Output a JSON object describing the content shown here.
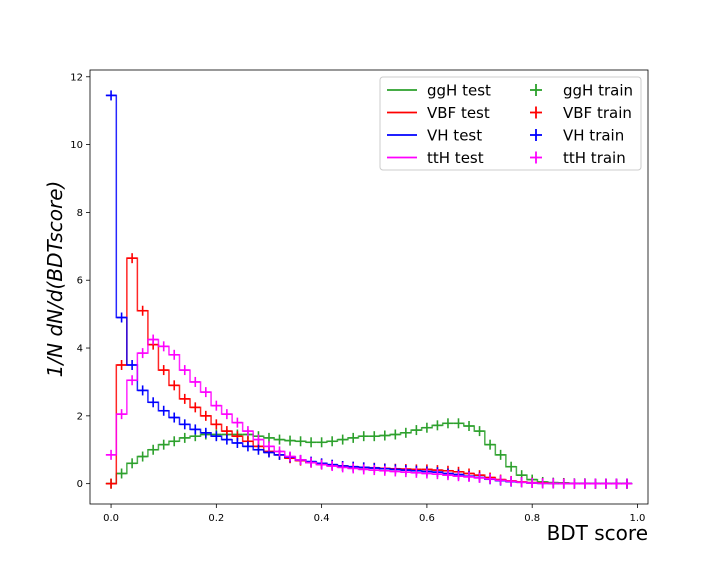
{
  "chart_data": {
    "type": "line",
    "chart_style": "step histogram (test) with cross markers (train)",
    "xlabel": "BDT score",
    "ylabel": "1/N dN/d(BDTscore)",
    "xlim": [
      -0.04,
      1.02
    ],
    "ylim": [
      -0.6,
      12.2
    ],
    "xticks": [
      "0.0",
      "0.2",
      "0.4",
      "0.6",
      "0.8",
      "1.0"
    ],
    "yticks": [
      "0",
      "2",
      "4",
      "6",
      "8",
      "10",
      "12"
    ],
    "grid": false,
    "legend_position": "top-right",
    "legend_columns": 2,
    "bin_width": 0.02,
    "bin_centers": [
      0.0,
      0.02,
      0.04,
      0.06,
      0.08,
      0.1,
      0.12,
      0.14,
      0.16,
      0.18,
      0.2,
      0.22,
      0.24,
      0.26,
      0.28,
      0.3,
      0.32,
      0.34,
      0.36,
      0.38,
      0.4,
      0.42,
      0.44,
      0.46,
      0.48,
      0.5,
      0.52,
      0.54,
      0.56,
      0.58,
      0.6,
      0.62,
      0.64,
      0.66,
      0.68,
      0.7,
      0.72,
      0.74,
      0.76,
      0.78,
      0.8,
      0.82,
      0.84,
      0.86,
      0.88,
      0.9,
      0.92,
      0.94,
      0.96,
      0.98
    ],
    "series": [
      {
        "name": "ggH",
        "color": "#2ca02c",
        "test_label": "ggH test",
        "train_label": "ggH train",
        "values": [
          0.0,
          0.3,
          0.6,
          0.8,
          1.0,
          1.15,
          1.25,
          1.35,
          1.4,
          1.45,
          1.45,
          1.45,
          1.45,
          1.45,
          1.4,
          1.35,
          1.3,
          1.27,
          1.25,
          1.22,
          1.22,
          1.25,
          1.3,
          1.35,
          1.4,
          1.4,
          1.42,
          1.45,
          1.5,
          1.58,
          1.65,
          1.72,
          1.78,
          1.78,
          1.7,
          1.55,
          1.15,
          0.85,
          0.5,
          0.25,
          0.12,
          0.05,
          0.03,
          0.02,
          0.01,
          0.01,
          0.0,
          0.0,
          0.0,
          0.0
        ]
      },
      {
        "name": "VBF",
        "color": "#ff0000",
        "test_label": "VBF test",
        "train_label": "VBF train",
        "values": [
          0.0,
          3.5,
          6.65,
          5.1,
          4.1,
          3.35,
          2.9,
          2.5,
          2.25,
          2.0,
          1.75,
          1.55,
          1.4,
          1.25,
          1.1,
          0.95,
          0.85,
          0.75,
          0.68,
          0.62,
          0.58,
          0.55,
          0.52,
          0.5,
          0.48,
          0.47,
          0.45,
          0.44,
          0.43,
          0.42,
          0.42,
          0.4,
          0.38,
          0.35,
          0.3,
          0.25,
          0.18,
          0.12,
          0.08,
          0.05,
          0.03,
          0.02,
          0.01,
          0.01,
          0.0,
          0.0,
          0.0,
          0.0,
          0.0,
          0.0
        ]
      },
      {
        "name": "VH",
        "color": "#0000ff",
        "test_label": "VH test",
        "train_label": "VH train",
        "values": [
          11.45,
          4.9,
          3.5,
          2.75,
          2.4,
          2.15,
          1.95,
          1.75,
          1.6,
          1.5,
          1.4,
          1.3,
          1.2,
          1.1,
          1.0,
          0.92,
          0.85,
          0.78,
          0.7,
          0.65,
          0.6,
          0.56,
          0.52,
          0.5,
          0.48,
          0.46,
          0.44,
          0.42,
          0.4,
          0.38,
          0.36,
          0.34,
          0.3,
          0.27,
          0.22,
          0.18,
          0.13,
          0.09,
          0.06,
          0.04,
          0.02,
          0.01,
          0.01,
          0.0,
          0.0,
          0.0,
          0.0,
          0.0,
          0.0,
          0.0
        ]
      },
      {
        "name": "ttH",
        "color": "#ff00ff",
        "test_label": "ttH test",
        "train_label": "ttH train",
        "values": [
          0.85,
          2.05,
          3.05,
          3.85,
          4.25,
          4.05,
          3.8,
          3.35,
          3.0,
          2.7,
          2.3,
          2.05,
          1.8,
          1.55,
          1.3,
          1.1,
          0.95,
          0.8,
          0.7,
          0.62,
          0.56,
          0.52,
          0.48,
          0.45,
          0.42,
          0.4,
          0.38,
          0.36,
          0.34,
          0.32,
          0.3,
          0.28,
          0.25,
          0.22,
          0.2,
          0.17,
          0.14,
          0.1,
          0.07,
          0.04,
          0.02,
          0.01,
          0.01,
          0.0,
          0.0,
          0.0,
          0.0,
          0.0,
          0.0,
          0.0
        ]
      }
    ]
  }
}
